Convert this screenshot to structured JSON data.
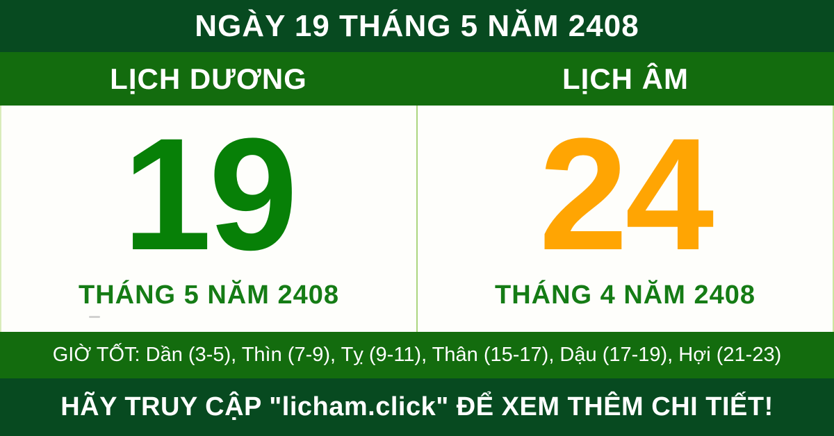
{
  "top_bar": {
    "title": "NGÀY 19 THÁNG 5 NĂM 2408"
  },
  "columns": {
    "solar_header": "LỊCH DƯƠNG",
    "lunar_header": "LỊCH ÂM"
  },
  "solar": {
    "day": "19",
    "month_label": "THÁNG 5 NĂM 2408"
  },
  "lunar": {
    "day": "24",
    "month_label": "THÁNG 4 NĂM 2408"
  },
  "good_hours": {
    "text": "GIỜ TỐT: Dần (3-5), Thìn (7-9), Tỵ (9-11), Thân (15-17), Dậu (17-19), Hợi (21-23)"
  },
  "footer": {
    "text": "HÃY TRUY CẬP \"licham.click\" ĐỂ XEM THÊM CHI TIẾT!"
  },
  "colors": {
    "dark_green_bar": "#074a20",
    "medium_green_bar": "#136c0e",
    "solar_day_green": "#078007",
    "lunar_day_orange": "#ffa503",
    "month_text_green": "#157c15",
    "divider_light_green": "#abd67e",
    "panel_background": "#fefefb",
    "bar_text_white": "#ffffff"
  }
}
